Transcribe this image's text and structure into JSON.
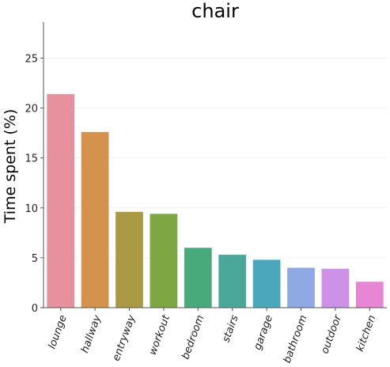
{
  "chart_data": {
    "type": "bar",
    "title": "chair",
    "xlabel": "",
    "ylabel": "Time spent (%)",
    "categories": [
      "lounge",
      "hallway",
      "entryway",
      "workout",
      "bedroom",
      "stairs",
      "garage",
      "bathroom",
      "outdoor",
      "kitchen"
    ],
    "values": [
      21.4,
      17.6,
      9.6,
      9.4,
      6.0,
      5.3,
      4.8,
      4.0,
      3.9,
      2.6
    ],
    "colors": [
      "#e8919e",
      "#d5924d",
      "#ab9a44",
      "#7ea744",
      "#48a97a",
      "#4aa89b",
      "#4aa7bc",
      "#8fa9e4",
      "#cd92e8",
      "#e686d4"
    ],
    "ylim": [
      0,
      28.6
    ],
    "yticks": [
      0,
      5,
      10,
      15,
      20,
      25
    ],
    "grid": true,
    "legend": "none"
  }
}
